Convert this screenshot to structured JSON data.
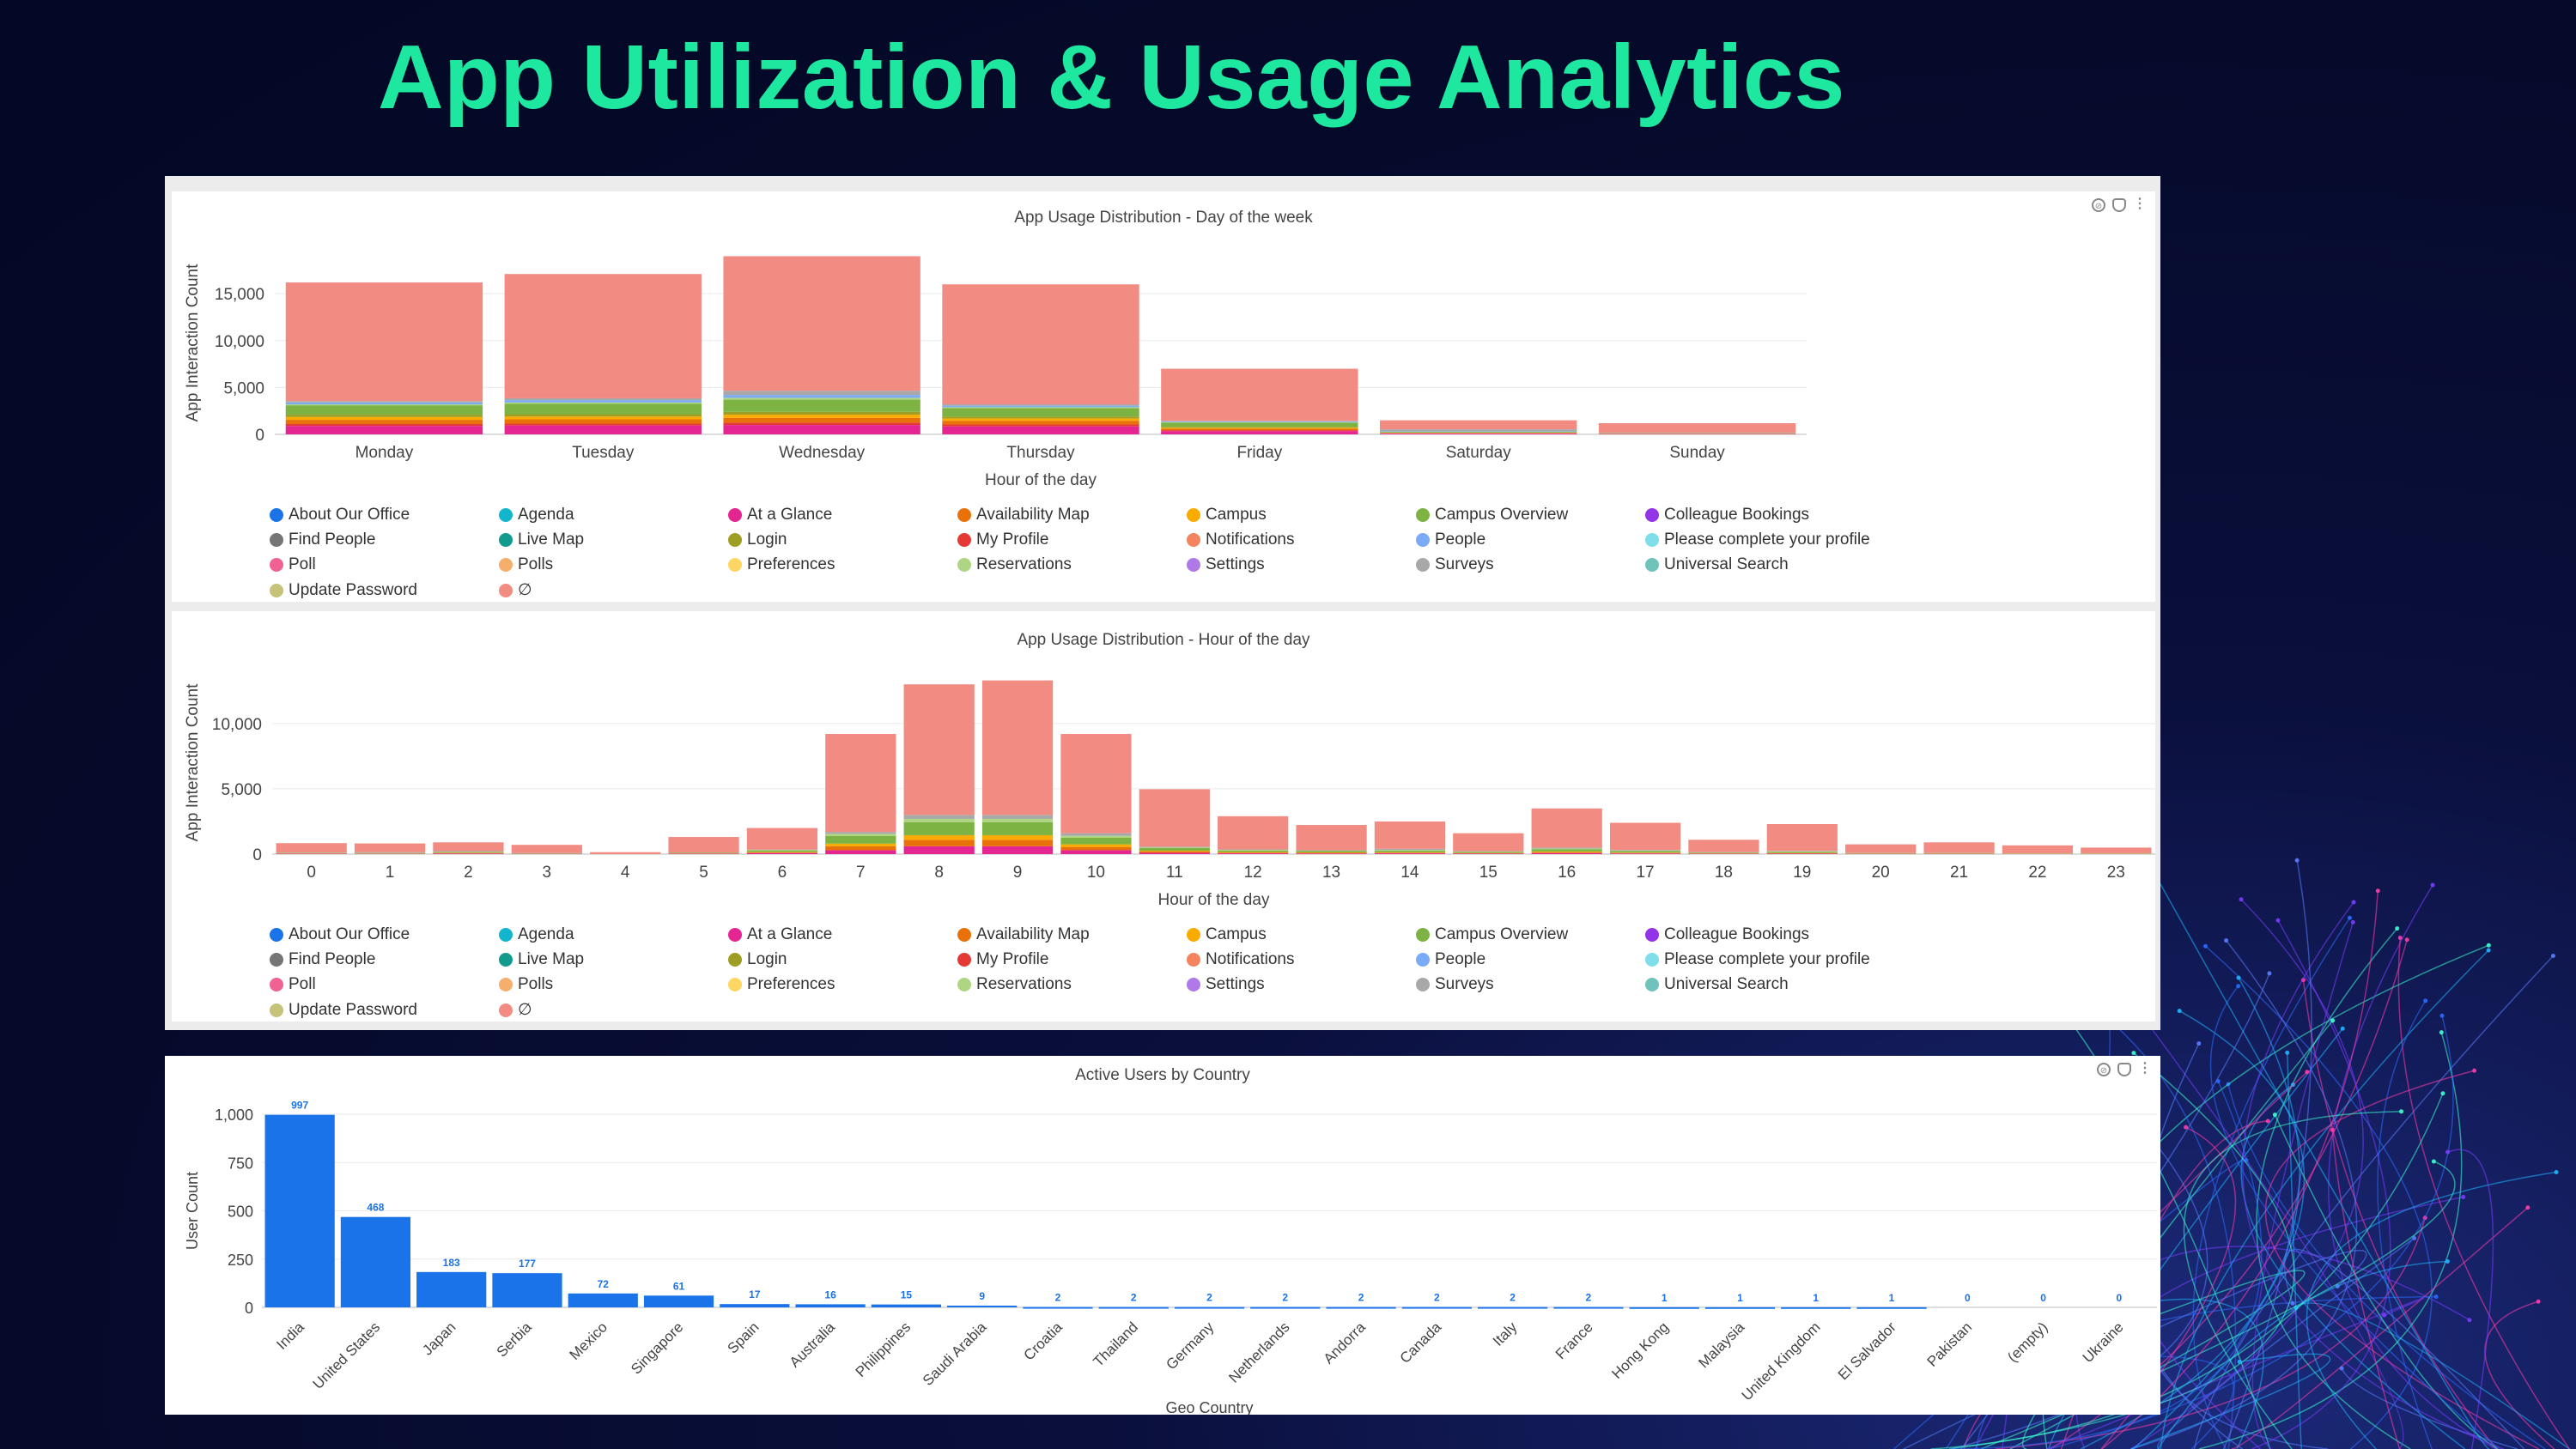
{
  "page_title": "App Utilization & Usage Analytics",
  "panel_icons": {
    "explore": "explore-icon",
    "alert": "bell-icon",
    "more": "more-vert-icon"
  },
  "legend": [
    {
      "label": "About Our Office",
      "color": "#1a73e8"
    },
    {
      "label": "Agenda",
      "color": "#12b5cb"
    },
    {
      "label": "At a Glance",
      "color": "#e52592"
    },
    {
      "label": "Availability Map",
      "color": "#e8710a"
    },
    {
      "label": "Campus",
      "color": "#f9ab00"
    },
    {
      "label": "Campus Overview",
      "color": "#7cb342"
    },
    {
      "label": "Colleague Bookings",
      "color": "#9334e6"
    },
    {
      "label": "Find People",
      "color": "#757575"
    },
    {
      "label": "Live Map",
      "color": "#139a8e"
    },
    {
      "label": "Login",
      "color": "#9e9d24"
    },
    {
      "label": "My Profile",
      "color": "#e53935"
    },
    {
      "label": "Notifications",
      "color": "#f4845f"
    },
    {
      "label": "People",
      "color": "#7baaf7"
    },
    {
      "label": "Please complete your profile",
      "color": "#80deea"
    },
    {
      "label": "Poll",
      "color": "#f06292"
    },
    {
      "label": "Polls",
      "color": "#f6ae6c"
    },
    {
      "label": "Preferences",
      "color": "#fdd663"
    },
    {
      "label": "Reservations",
      "color": "#aed581"
    },
    {
      "label": "Settings",
      "color": "#af7ae8"
    },
    {
      "label": "Surveys",
      "color": "#a8a8a8"
    },
    {
      "label": "Universal Search",
      "color": "#6fc3bb"
    },
    {
      "label": "Update Password",
      "color": "#c5c27a"
    },
    {
      "label": "∅",
      "color": "#f28b82"
    }
  ],
  "chart_data": [
    {
      "type": "bar",
      "stacked": true,
      "title": "App Usage Distribution - Day of the week",
      "xlabel": "Hour of the day",
      "ylabel": "App Interaction Count",
      "ylim": [
        0,
        19500
      ],
      "yticks": [
        0,
        5000,
        10000,
        15000
      ],
      "ytick_labels": [
        "0",
        "5,000",
        "10,000",
        "15,000"
      ],
      "categories": [
        "Monday",
        "Tuesday",
        "Wednesday",
        "Thursday",
        "Friday",
        "Saturday",
        "Sunday"
      ],
      "series": [
        {
          "name": "At a Glance",
          "color": "#e52592",
          "values": [
            900,
            950,
            1000,
            850,
            350,
            80,
            40
          ]
        },
        {
          "name": "My Profile",
          "color": "#e53935",
          "values": [
            200,
            200,
            250,
            200,
            100,
            30,
            20
          ]
        },
        {
          "name": "Availability Map",
          "color": "#e8710a",
          "values": [
            450,
            450,
            500,
            400,
            150,
            40,
            20
          ]
        },
        {
          "name": "Campus",
          "color": "#f9ab00",
          "values": [
            300,
            300,
            350,
            250,
            100,
            20,
            10
          ]
        },
        {
          "name": "Login",
          "color": "#9e9d24",
          "values": [
            250,
            250,
            300,
            200,
            100,
            20,
            10
          ]
        },
        {
          "name": "Campus Overview",
          "color": "#7cb342",
          "values": [
            1000,
            1100,
            1300,
            900,
            450,
            80,
            30
          ]
        },
        {
          "name": "Reservations",
          "color": "#aed581",
          "values": [
            100,
            150,
            200,
            100,
            50,
            10,
            10
          ]
        },
        {
          "name": "People",
          "color": "#7baaf7",
          "values": [
            200,
            250,
            300,
            150,
            80,
            60,
            20
          ]
        },
        {
          "name": "Surveys",
          "color": "#a8a8a8",
          "values": [
            150,
            200,
            450,
            150,
            60,
            200,
            20
          ]
        },
        {
          "name": "∅",
          "color": "#f28b82",
          "values": [
            12650,
            13250,
            14350,
            12800,
            5560,
            960,
            1010
          ]
        }
      ]
    },
    {
      "type": "bar",
      "stacked": true,
      "title": "App Usage Distribution - Hour of the day",
      "xlabel": "Hour of the day",
      "ylabel": "App Interaction Count",
      "ylim": [
        0,
        14000
      ],
      "yticks": [
        0,
        5000,
        10000
      ],
      "ytick_labels": [
        "0",
        "5,000",
        "10,000"
      ],
      "categories": [
        "0",
        "1",
        "2",
        "3",
        "4",
        "5",
        "6",
        "7",
        "8",
        "9",
        "10",
        "11",
        "12",
        "13",
        "14",
        "15",
        "16",
        "17",
        "18",
        "19",
        "20",
        "21",
        "22",
        "23"
      ],
      "series": [
        {
          "name": "At a Glance",
          "color": "#e52592",
          "values": [
            30,
            20,
            50,
            20,
            0,
            30,
            80,
            300,
            600,
            600,
            300,
            100,
            60,
            50,
            60,
            40,
            80,
            50,
            30,
            40,
            20,
            20,
            10,
            10
          ]
        },
        {
          "name": "Availability Map",
          "color": "#e8710a",
          "values": [
            20,
            20,
            30,
            10,
            0,
            20,
            60,
            300,
            500,
            500,
            250,
            100,
            60,
            50,
            50,
            30,
            70,
            40,
            20,
            30,
            20,
            20,
            10,
            10
          ]
        },
        {
          "name": "Campus",
          "color": "#f9ab00",
          "values": [
            10,
            10,
            20,
            10,
            0,
            10,
            30,
            200,
            350,
            350,
            200,
            60,
            40,
            30,
            40,
            20,
            50,
            30,
            10,
            20,
            10,
            10,
            10,
            10
          ]
        },
        {
          "name": "Campus Overview",
          "color": "#7cb342",
          "values": [
            30,
            30,
            60,
            20,
            0,
            40,
            120,
            600,
            1000,
            1000,
            500,
            200,
            120,
            100,
            120,
            80,
            180,
            120,
            50,
            90,
            30,
            30,
            20,
            20
          ]
        },
        {
          "name": "Reservations",
          "color": "#aed581",
          "values": [
            10,
            10,
            20,
            10,
            0,
            10,
            30,
            150,
            250,
            250,
            150,
            50,
            40,
            30,
            40,
            20,
            50,
            30,
            20,
            30,
            10,
            10,
            10,
            10
          ]
        },
        {
          "name": "Surveys",
          "color": "#a8a8a8",
          "values": [
            20,
            50,
            50,
            20,
            0,
            10,
            30,
            150,
            300,
            300,
            200,
            60,
            40,
            40,
            100,
            30,
            70,
            50,
            20,
            40,
            10,
            10,
            10,
            10
          ]
        },
        {
          "name": "∅",
          "color": "#f28b82",
          "values": [
            720,
            680,
            670,
            620,
            150,
            1190,
            1650,
            7500,
            10000,
            10300,
            7600,
            4400,
            2540,
            1930,
            2090,
            1380,
            3000,
            2080,
            950,
            2050,
            650,
            800,
            600,
            430
          ]
        }
      ]
    },
    {
      "type": "bar",
      "title": "Active Users by Country",
      "xlabel": "Geo Country",
      "ylabel": "User Count",
      "ylim": [
        0,
        1000
      ],
      "yticks": [
        0,
        250,
        500,
        750,
        1000
      ],
      "ytick_labels": [
        "0",
        "250",
        "500",
        "750",
        "1,000"
      ],
      "color": "#1a73e8",
      "categories": [
        "India",
        "United States",
        "Japan",
        "Serbia",
        "Mexico",
        "Singapore",
        "Spain",
        "Australia",
        "Philippines",
        "Saudi Arabia",
        "Croatia",
        "Thailand",
        "Germany",
        "Netherlands",
        "Andorra",
        "Canada",
        "Italy",
        "France",
        "Hong Kong",
        "Malaysia",
        "United Kingdom",
        "El Salvador",
        "Pakistan",
        "(empty)",
        "Ukraine"
      ],
      "values": [
        997,
        468,
        183,
        177,
        72,
        61,
        17,
        16,
        15,
        9,
        2,
        2,
        2,
        2,
        2,
        2,
        2,
        2,
        1,
        1,
        1,
        1,
        0,
        0,
        0
      ]
    }
  ]
}
